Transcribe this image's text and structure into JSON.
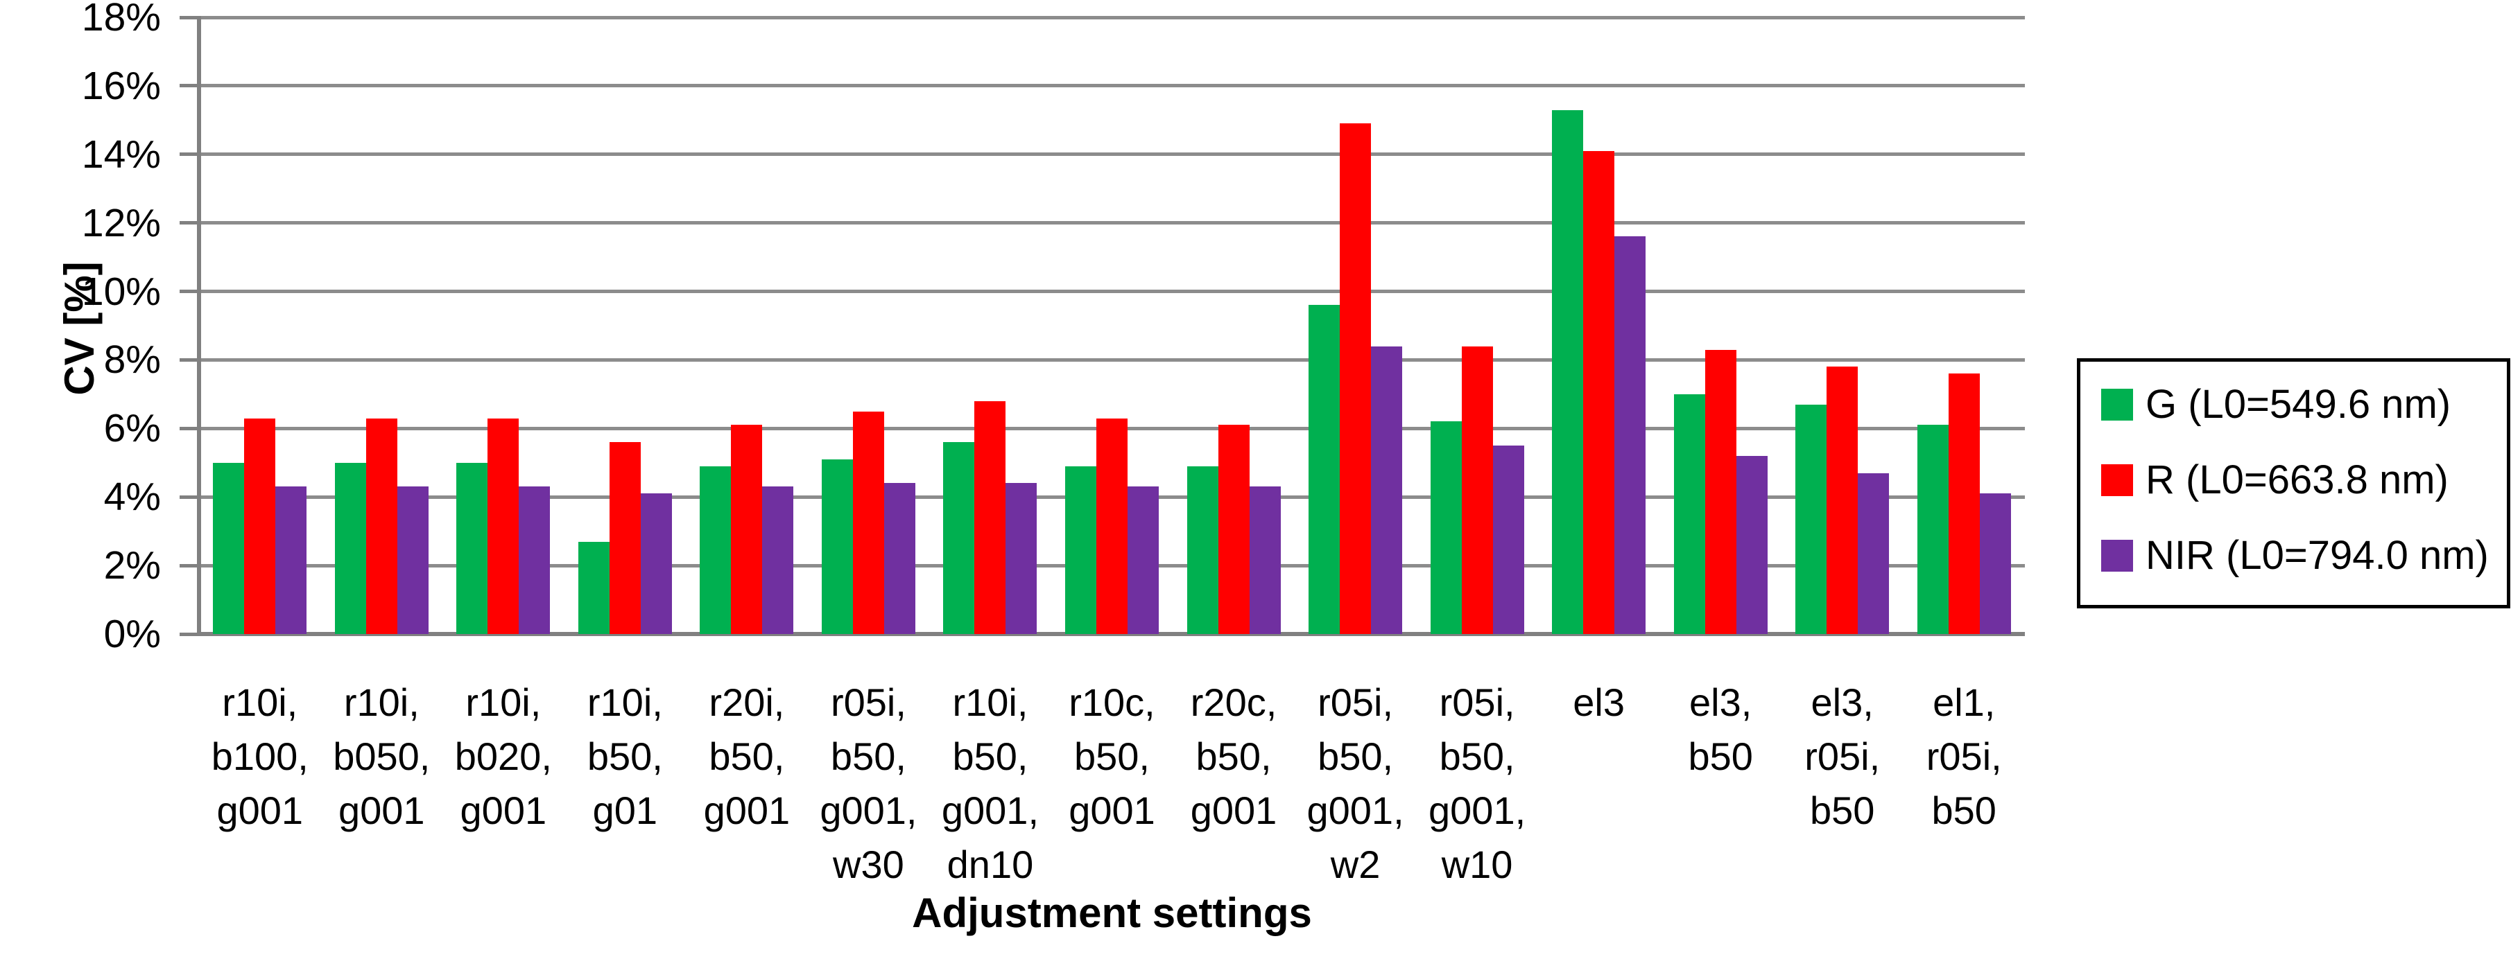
{
  "chart_data": {
    "type": "bar",
    "title": "",
    "xlabel": "Adjustment settings",
    "ylabel": "CV [%]",
    "ylim": [
      0,
      18
    ],
    "ytick_step": 2,
    "yticks": [
      "0%",
      "2%",
      "4%",
      "6%",
      "8%",
      "10%",
      "12%",
      "14%",
      "16%",
      "18%"
    ],
    "grid": true,
    "legend_position": "right",
    "categories": [
      "r10i, b100, g001",
      "r10i, b050, g001",
      "r10i, b020, g001",
      "r10i, b50, g01",
      "r20i, b50, g001",
      "r05i, b50, g001, w30",
      "r10i, b50, g001, dn10",
      "r10c, b50, g001",
      "r20c, b50, g001",
      "r05i, b50, g001, w2",
      "r05i, b50, g001, w10",
      "el3",
      "el3, b50",
      "el3, r05i, b50",
      "el1, r05i, b50"
    ],
    "category_lines": [
      [
        "r10i,",
        "b100,",
        "g001"
      ],
      [
        "r10i,",
        "b050,",
        "g001"
      ],
      [
        "r10i,",
        "b020,",
        "g001"
      ],
      [
        "r10i,",
        "b50,",
        "g01"
      ],
      [
        "r20i,",
        "b50,",
        "g001"
      ],
      [
        "r05i,",
        "b50,",
        "g001,",
        "w30"
      ],
      [
        "r10i,",
        "b50,",
        "g001,",
        "dn10"
      ],
      [
        "r10c,",
        "b50,",
        "g001"
      ],
      [
        "r20c,",
        "b50,",
        "g001"
      ],
      [
        "r05i,",
        "b50,",
        "g001,",
        "w2"
      ],
      [
        "r05i,",
        "b50,",
        "g001,",
        "w10"
      ],
      [
        "el3"
      ],
      [
        "el3,",
        "b50"
      ],
      [
        "el3,",
        "r05i,",
        "b50"
      ],
      [
        "el1,",
        "r05i,",
        "b50"
      ]
    ],
    "series": [
      {
        "name": "G (L0=549.6 nm)",
        "color": "#00B050",
        "values": [
          5.0,
          5.0,
          5.0,
          2.7,
          4.9,
          5.1,
          5.6,
          4.9,
          4.9,
          9.6,
          6.2,
          15.3,
          7.0,
          6.7,
          6.1
        ]
      },
      {
        "name": "R (L0=663.8 nm)",
        "color": "#FF0000",
        "values": [
          6.3,
          6.3,
          6.3,
          5.6,
          6.1,
          6.5,
          6.8,
          6.3,
          6.1,
          14.9,
          8.4,
          14.1,
          8.3,
          7.8,
          7.6
        ]
      },
      {
        "name": "NIR (L0=794.0 nm)",
        "color": "#7030A0",
        "values": [
          4.3,
          4.3,
          4.3,
          4.1,
          4.3,
          4.4,
          4.4,
          4.3,
          4.3,
          8.4,
          5.5,
          11.6,
          5.2,
          4.7,
          4.1
        ]
      }
    ]
  },
  "colors": {
    "gridline": "#8c8c8c",
    "axis": "#808080",
    "text": "#000000",
    "background": "#ffffff",
    "legend_border": "#000000"
  }
}
